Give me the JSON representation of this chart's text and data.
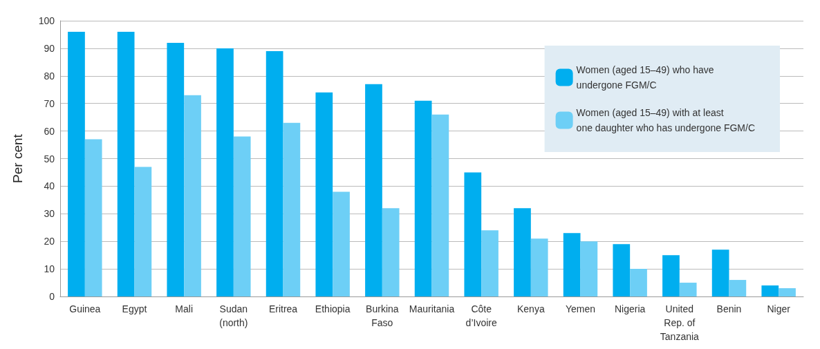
{
  "chart_data": {
    "type": "bar",
    "ylabel": "Per cent",
    "categories": [
      "Guinea",
      "Egypt",
      "Mali",
      "Sudan\n(north)",
      "Eritrea",
      "Ethiopia",
      "Burkina\nFaso",
      "Mauritania",
      "Côte\nd’Ivoire",
      "Kenya",
      "Yemen",
      "Nigeria",
      "United\nRep. of\nTanzania",
      "Benin",
      "Niger"
    ],
    "series": [
      {
        "name": "Women (aged 15–49) who have\nundergone FGM/C",
        "color": "#00aeef",
        "values": [
          96,
          96,
          92,
          90,
          89,
          74,
          77,
          71,
          45,
          32,
          23,
          19,
          15,
          17,
          4
        ]
      },
      {
        "name": "Women (aged 15–49) with at least\none daughter who has undergone FGM/C",
        "color": "#6dcff6",
        "values": [
          57,
          47,
          73,
          58,
          63,
          38,
          32,
          66,
          24,
          21,
          20,
          10,
          5,
          6,
          3
        ]
      }
    ],
    "ylim": [
      0,
      100
    ],
    "yticks": [
      0,
      10,
      20,
      30,
      40,
      50,
      60,
      70,
      80,
      90,
      100
    ],
    "grid": "y",
    "legend": "top right"
  }
}
